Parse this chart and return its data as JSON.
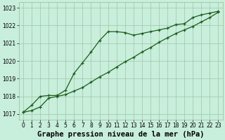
{
  "x": [
    0,
    1,
    2,
    3,
    4,
    5,
    6,
    7,
    8,
    9,
    10,
    11,
    12,
    13,
    14,
    15,
    16,
    17,
    18,
    19,
    20,
    21,
    22,
    23
  ],
  "line1": [
    1017.1,
    1017.5,
    1018.0,
    1018.05,
    1018.05,
    1018.35,
    1019.3,
    1019.9,
    1020.5,
    1021.15,
    1021.65,
    1021.65,
    1021.6,
    1021.45,
    1021.55,
    1021.65,
    1021.75,
    1021.85,
    1022.05,
    1022.1,
    1022.45,
    1022.6,
    1022.7,
    1022.8
  ],
  "line2": [
    1017.1,
    1017.2,
    1017.4,
    1017.9,
    1018.0,
    1018.1,
    1018.3,
    1018.5,
    1018.8,
    1019.1,
    1019.35,
    1019.65,
    1019.95,
    1020.2,
    1020.5,
    1020.75,
    1021.05,
    1021.3,
    1021.55,
    1021.75,
    1021.95,
    1022.2,
    1022.45,
    1022.75
  ],
  "line_color": "#1a5c1a",
  "bg_color": "#c8eedc",
  "grid_color": "#99bb99",
  "title": "Graphe pression niveau de la mer (hPa)",
  "ylim_min": 1016.7,
  "ylim_max": 1023.3,
  "yticks": [
    1017,
    1018,
    1019,
    1020,
    1021,
    1022,
    1023
  ],
  "xticks": [
    0,
    1,
    2,
    3,
    4,
    5,
    6,
    7,
    8,
    9,
    10,
    11,
    12,
    13,
    14,
    15,
    16,
    17,
    18,
    19,
    20,
    21,
    22,
    23
  ],
  "title_fontsize": 7.5,
  "tick_fontsize": 5.5,
  "figsize": [
    3.2,
    2.0
  ],
  "dpi": 100
}
